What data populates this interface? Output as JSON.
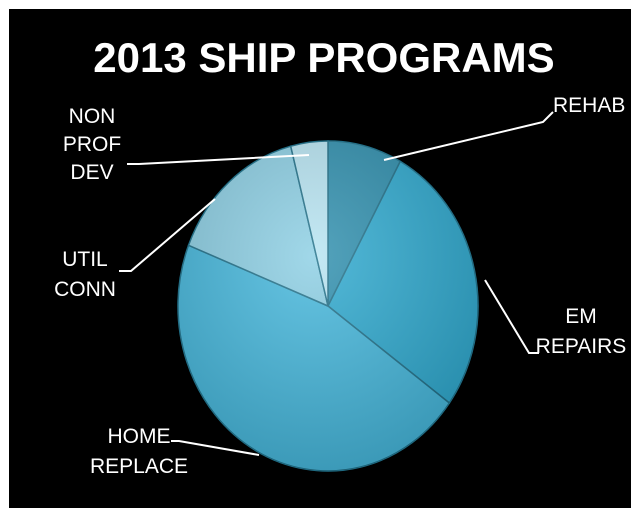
{
  "chart_data": {
    "type": "pie",
    "title": "2013 SHIP PROGRAMS",
    "categories": [
      "REHAB",
      "EM REPAIRS",
      "HOME REPLACE",
      "UTIL CONN",
      "NON PROF DEV"
    ],
    "label_lines": [
      [
        "REHAB"
      ],
      [
        "EM",
        "REPAIRS"
      ],
      [
        "HOME",
        "REPLACE"
      ],
      [
        "UTIL",
        "CONN"
      ],
      [
        "NON",
        "PROF",
        "DEV"
      ]
    ],
    "values": [
      8,
      27,
      46,
      15,
      4
    ],
    "colors": [
      "#2e8fae",
      "#2eaad0",
      "#45b8dd",
      "#8ccfe4",
      "#b7e4f2"
    ],
    "background": "#000000",
    "legend": "none"
  }
}
